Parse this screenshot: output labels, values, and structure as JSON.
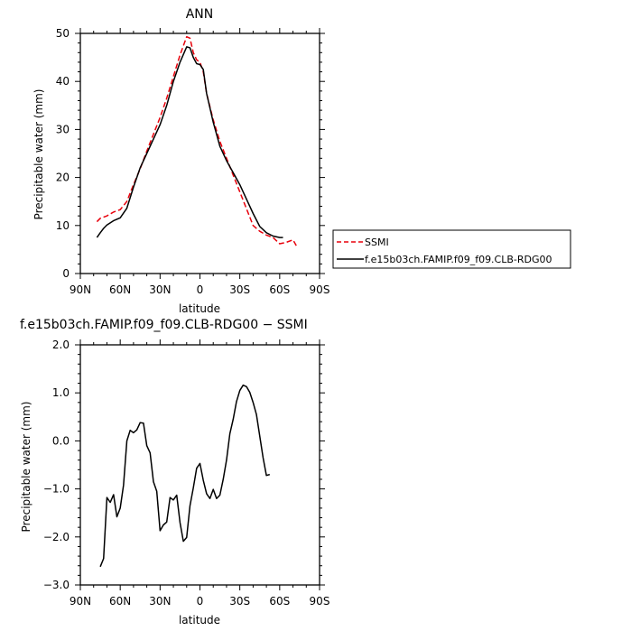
{
  "chart_data": [
    {
      "type": "line",
      "title": "ANN",
      "xlabel": "latitude",
      "ylabel": "Precipitable water (mm)",
      "xlim": [
        90,
        -90
      ],
      "ylim": [
        0,
        50
      ],
      "x_ticks": [
        90,
        60,
        30,
        0,
        -30,
        -60,
        -90
      ],
      "x_tick_labels": [
        "90N",
        "60N",
        "30N",
        "0",
        "30S",
        "60S",
        "90S"
      ],
      "y_ticks": [
        0,
        10,
        20,
        30,
        40,
        50
      ],
      "y_tick_labels": [
        "0",
        "10",
        "20",
        "30",
        "40",
        "50"
      ],
      "legend_position": "right",
      "series": [
        {
          "name": "SSMI",
          "color": "#e8000b",
          "dash": "dashed",
          "x": [
            77.5,
            75,
            70,
            65,
            60,
            55,
            50,
            45,
            40,
            35,
            30,
            25,
            20,
            15,
            10,
            7.5,
            5,
            2.5,
            0,
            -2.5,
            -5,
            -10,
            -15,
            -20,
            -25,
            -30,
            -35,
            -40,
            -45,
            -50,
            -55,
            -60,
            -65,
            -70,
            -72.5
          ],
          "y": [
            10.8,
            11.5,
            12.0,
            12.8,
            13.3,
            15.0,
            18.5,
            21.8,
            25.5,
            29.0,
            32.5,
            36.5,
            41.0,
            45.5,
            49.3,
            49.0,
            46.0,
            44.5,
            44.0,
            42.0,
            37.5,
            32.0,
            27.5,
            24.0,
            20.5,
            17.0,
            13.5,
            10.0,
            8.8,
            8.0,
            7.5,
            6.2,
            6.5,
            7.0,
            5.8
          ]
        },
        {
          "name": "f.e15b03ch.FAMIP.f09_f09.CLB-RDG00",
          "color": "#000000",
          "dash": "solid",
          "x": [
            77.5,
            75,
            72.5,
            70,
            65,
            60,
            55,
            50,
            45,
            40,
            35,
            30,
            25,
            20,
            15,
            10,
            7.5,
            5,
            2.5,
            0,
            -2.5,
            -5,
            -10,
            -15,
            -20,
            -25,
            -30,
            -35,
            -40,
            -45,
            -50,
            -55,
            -60,
            -62.5
          ],
          "y": [
            7.5,
            8.5,
            9.4,
            10.1,
            11.0,
            11.6,
            13.6,
            18.0,
            22.0,
            25.0,
            28.0,
            31.0,
            35.0,
            40.0,
            44.0,
            47.2,
            47.0,
            45.0,
            43.7,
            43.5,
            42.5,
            37.5,
            31.5,
            26.5,
            23.5,
            21.0,
            18.5,
            15.5,
            12.5,
            9.8,
            8.5,
            7.8,
            7.5,
            7.5
          ]
        }
      ]
    },
    {
      "type": "line",
      "title": "f.e15b03ch.FAMIP.f09_f09.CLB-RDG00 − SSMI",
      "xlabel": "latitude",
      "ylabel": "Precipitable water (mm)",
      "xlim": [
        90,
        -90
      ],
      "ylim": [
        -3.0,
        2.0
      ],
      "x_ticks": [
        90,
        60,
        30,
        0,
        -30,
        -60,
        -90
      ],
      "x_tick_labels": [
        "90N",
        "60N",
        "30N",
        "0",
        "30S",
        "60S",
        "90S"
      ],
      "y_ticks": [
        -3.0,
        -2.0,
        -1.0,
        0.0,
        1.0,
        2.0
      ],
      "y_tick_labels": [
        "−3.0",
        "−2.0",
        "−1.0",
        "0.0",
        "1.0",
        "2.0"
      ],
      "series": [
        {
          "name": "",
          "color": "#000000",
          "dash": "solid",
          "x": [
            75,
            72.5,
            70,
            67.5,
            65,
            62.5,
            60,
            57.5,
            55,
            52.5,
            50,
            47.5,
            45,
            42.5,
            40,
            37.5,
            35,
            32.5,
            30,
            27.5,
            25,
            22.5,
            20,
            17.5,
            15,
            12.5,
            10,
            7.5,
            5,
            2.5,
            0,
            -2.5,
            -5,
            -7.5,
            -10,
            -12.5,
            -15,
            -17.5,
            -20,
            -22.5,
            -25,
            -27.5,
            -30,
            -32.5,
            -35,
            -37.5,
            -40,
            -42.5,
            -45,
            -47.5,
            -50,
            -52.5,
            -55,
            -57.5,
            -60,
            -62.5,
            -65
          ],
          "y": [
            -2.62,
            -2.45,
            -1.18,
            -1.28,
            -1.12,
            -1.58,
            -1.4,
            -0.92,
            0.0,
            0.22,
            0.17,
            0.23,
            0.38,
            0.37,
            -0.1,
            -0.25,
            -0.85,
            -1.05,
            -1.87,
            -1.75,
            -1.69,
            -1.18,
            -1.23,
            -1.13,
            -1.7,
            -2.09,
            -2.01,
            -1.35,
            -0.98,
            -0.57,
            -0.47,
            -0.82,
            -1.1,
            -1.2,
            -1.01,
            -1.2,
            -1.13,
            -0.8,
            -0.4,
            0.15,
            0.45,
            0.82,
            1.05,
            1.16,
            1.13,
            1.01,
            0.8,
            0.55,
            0.1,
            -0.35,
            -0.72,
            -0.7,
            null,
            null,
            null,
            null,
            null
          ]
        }
      ]
    }
  ]
}
